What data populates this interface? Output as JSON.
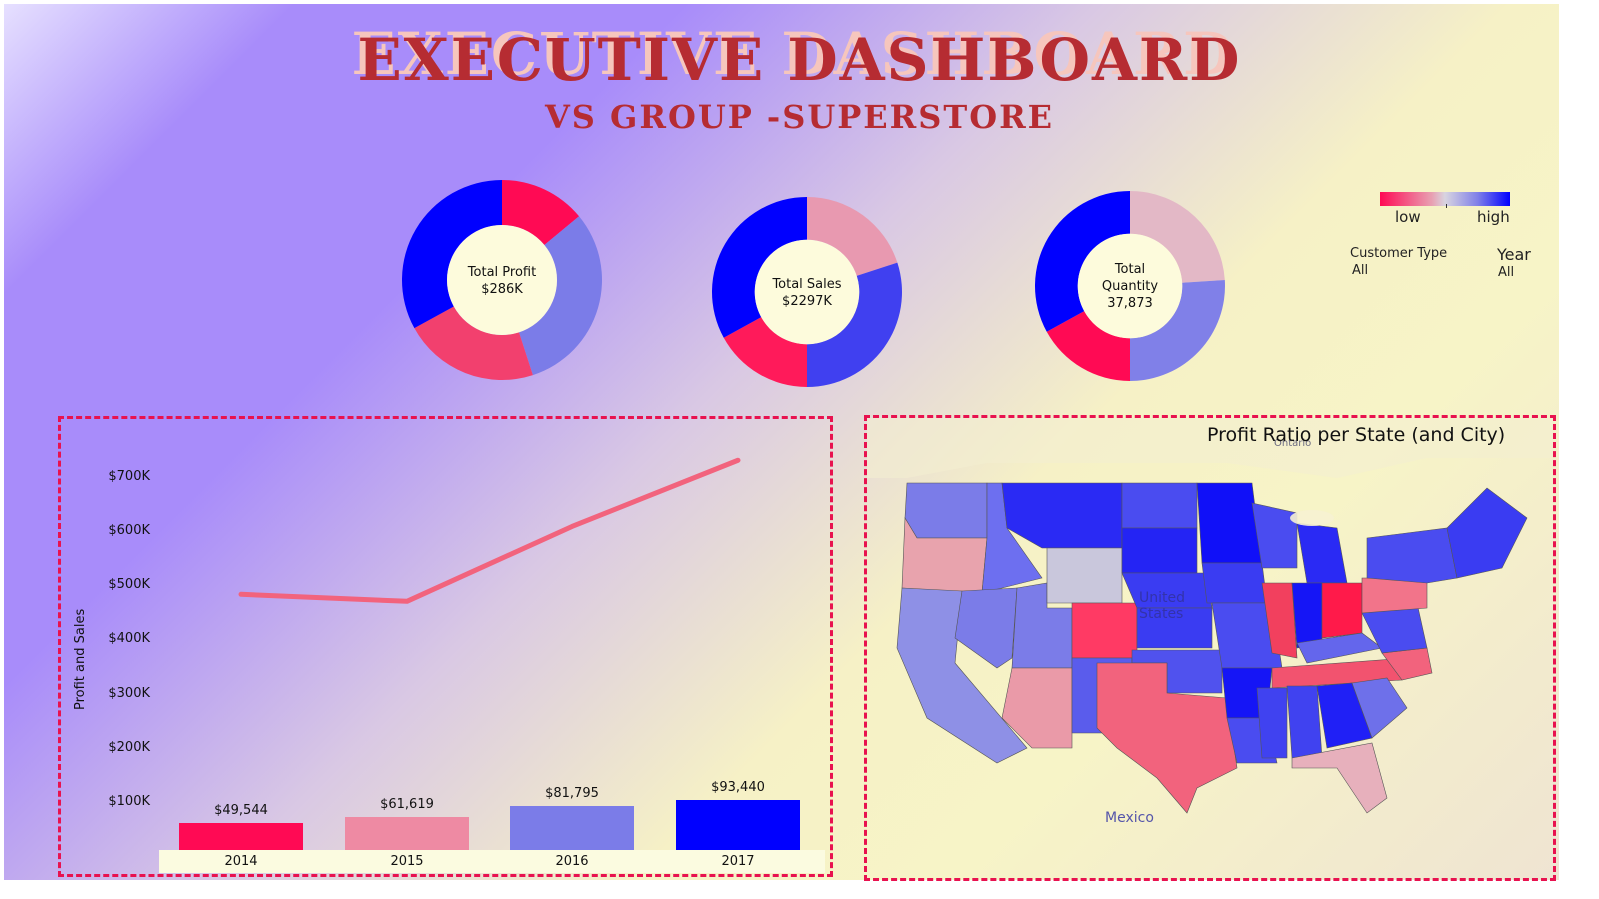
{
  "header": {
    "title": "EXECUTIVE DASHBOARD",
    "subtitle": "VS GROUP -SUPERSTORE"
  },
  "kpis": [
    {
      "label": "Total Profit",
      "value": "$286K"
    },
    {
      "label": "Total Sales",
      "value": "$2297K"
    },
    {
      "label": "Total",
      "label2": "Quantity",
      "value": "37,873"
    }
  ],
  "legend": {
    "low": "low",
    "high": "high"
  },
  "filters": {
    "customer_type_label": "Customer Type",
    "customer_type_value": "All",
    "year_label": "Year",
    "year_value": "All"
  },
  "map": {
    "title": "Profit Ratio per State (and City)",
    "labels": {
      "ontario": "Ontario",
      "united": "United",
      "states": "States",
      "mexico": "Mexico"
    }
  },
  "colors": {
    "pink": "#ff0a54",
    "light_pink": "#ee8aa3",
    "lavender": "#7b7ce8",
    "blue": "#0000ff",
    "line": "#f2637d",
    "accent": "#b62c32"
  },
  "chart_data": [
    {
      "type": "bar",
      "categories": [
        "2014",
        "2015",
        "2016",
        "2017"
      ],
      "values": [
        49544,
        61619,
        81795,
        93440
      ],
      "value_labels": [
        "$49,544",
        "$61,619",
        "$81,795",
        "$93,440"
      ],
      "ylabel": "Profit and Sales",
      "yticks": [
        "$100K",
        "$200K",
        "$300K",
        "$400K",
        "$500K",
        "$600K",
        "$700K"
      ],
      "ylim": [
        0,
        750000
      ],
      "line_series": {
        "values": [
          484000,
          471000,
          610000,
          733000
        ]
      }
    },
    {
      "type": "pie",
      "label": "Total Profit",
      "values": [
        14,
        31,
        22,
        33
      ],
      "colors": [
        "#ff0a54",
        "#7b7ce8",
        "#f2406e",
        "#0000ff"
      ]
    },
    {
      "type": "pie",
      "label": "Total Sales",
      "values": [
        20,
        30,
        17,
        33
      ],
      "colors": [
        "#e899b0",
        "#4040f0",
        "#ff1a5a",
        "#0000ff"
      ]
    },
    {
      "type": "pie",
      "label": "Total Quantity",
      "values": [
        24,
        26,
        17,
        33
      ],
      "colors": [
        "#e3b8c6",
        "#8080e8",
        "#ff0a54",
        "#0000ff"
      ]
    }
  ]
}
